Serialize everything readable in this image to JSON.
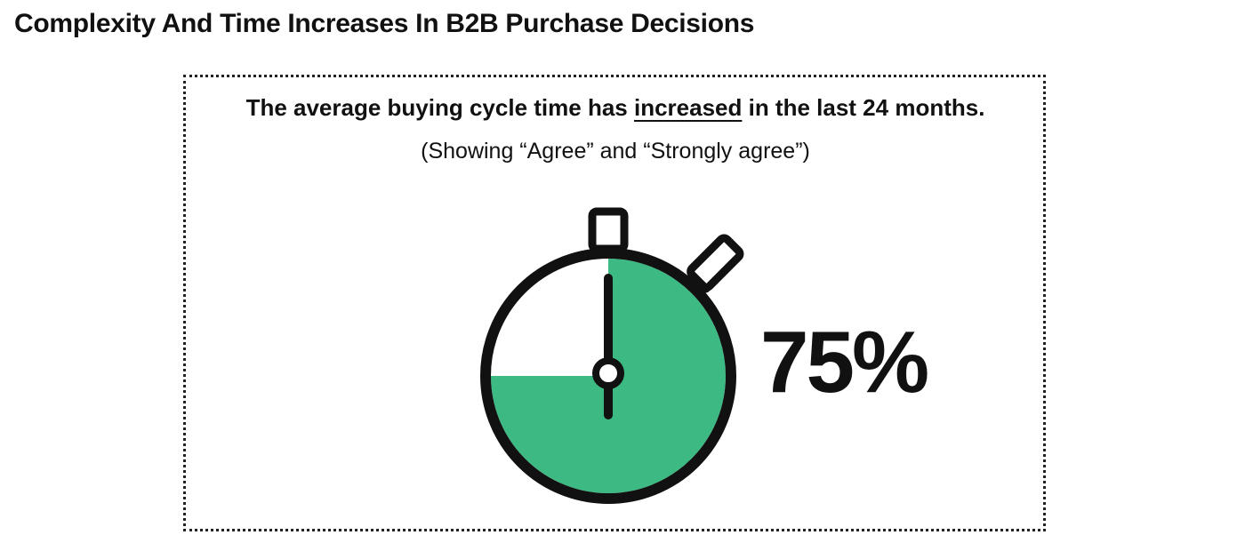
{
  "page": {
    "title": "Complexity And Time Increases In B2B Purchase Decisions"
  },
  "card": {
    "headline_before": "The average buying cycle time has ",
    "headline_emphasis": "increased",
    "headline_after": " in the last 24 months.",
    "subhead": "(Showing “Agree” and “Strongly agree”)"
  },
  "chart_data": {
    "type": "pie",
    "categories": [
      "Agree and Strongly agree"
    ],
    "values": [
      75
    ],
    "value_label": "75%",
    "visual": "stopwatch",
    "colors": {
      "fill": "#3DBA84",
      "outline": "#111111",
      "background": "#ffffff"
    }
  }
}
